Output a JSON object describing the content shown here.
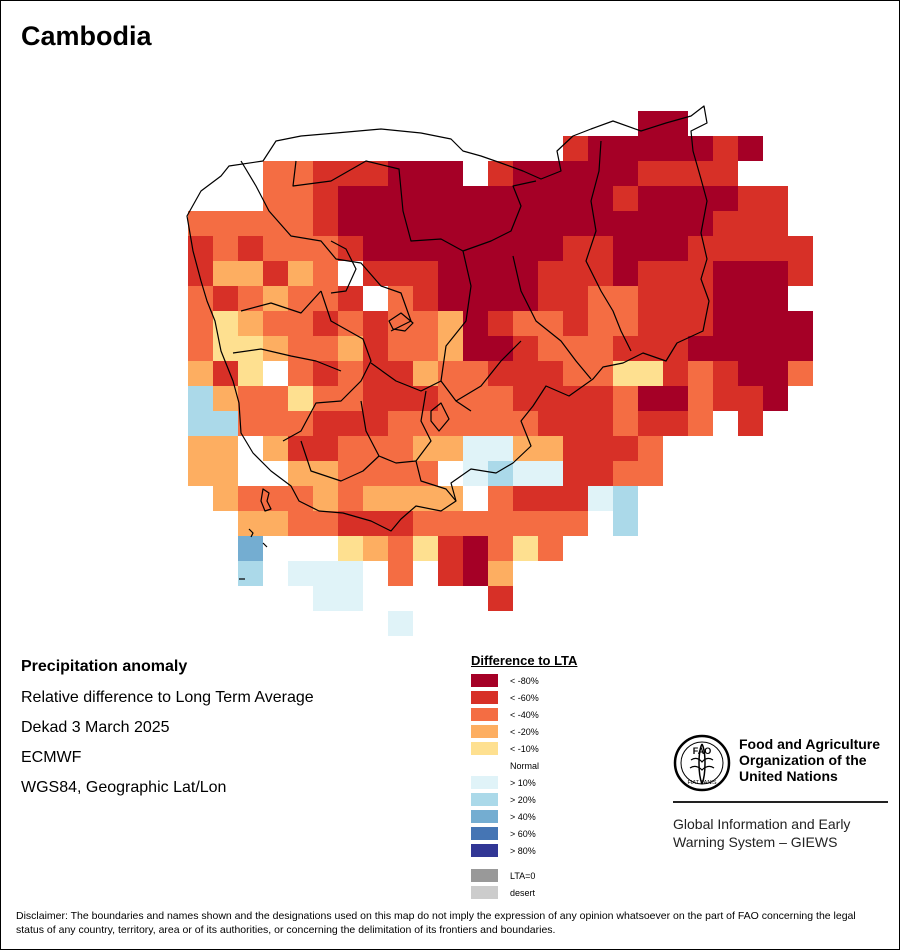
{
  "title": "Cambodia",
  "info": {
    "heading": "Precipitation anomaly",
    "line1": "Relative difference to Long Term Average",
    "line2": "Dekad 3 March 2025",
    "line3": "ECMWF",
    "line4": "WGS84, Geographic Lat/Lon"
  },
  "legend": {
    "title": "Difference to LTA",
    "classes": [
      {
        "key": "d80",
        "label": "< -80%",
        "color": "#A50026"
      },
      {
        "key": "d60",
        "label": "< -60%",
        "color": "#D73027"
      },
      {
        "key": "d40",
        "label": "< -40%",
        "color": "#F46D43"
      },
      {
        "key": "d20",
        "label": "< -20%",
        "color": "#FDAE61"
      },
      {
        "key": "d10",
        "label": "< -10%",
        "color": "#FEE090"
      },
      {
        "key": "n",
        "label": "Normal",
        "color": "#FFFFFF"
      },
      {
        "key": "w10",
        "label": "> 10%",
        "color": "#E0F3F8"
      },
      {
        "key": "w20",
        "label": "> 20%",
        "color": "#ABD9E9"
      },
      {
        "key": "w40",
        "label": "> 40%",
        "color": "#74ADD1"
      },
      {
        "key": "w60",
        "label": "> 60%",
        "color": "#4575B4"
      },
      {
        "key": "w80",
        "label": "> 80%",
        "color": "#313695"
      }
    ],
    "extra": [
      {
        "key": "lta0",
        "label": "LTA=0",
        "color": "#999999"
      },
      {
        "key": "desert",
        "label": "desert",
        "color": "#CCCCCC"
      }
    ]
  },
  "branding": {
    "logo_letters": "FAO",
    "logo_motto": "FIAT PANIS",
    "org_line1": "Food and Agriculture",
    "org_line2": "Organization of the",
    "org_line3": "United Nations",
    "giews_line1": "Global Information and Early",
    "giews_line2": "Warning System – GIEWS"
  },
  "disclaimer": "Disclaimer: The boundaries and names shown and the designations used on this map do not imply the expression of any opinion whatsoever on the part of FAO concerning the legal status of any country, territory, area or of its authorities, or concerning the delimitation of its frontiers and boundaries.",
  "grid_legend_key": "A=< -80%, B=< -60%, C=< -40%, D=< -20%, E=< -10%, N=Normal, F=> 10%, G=> 20%, H=> 40%, .=no data",
  "anomaly_grid": [
    "..................AA.....",
    "...............BAAAAABA..",
    "...CCBBBAAA.BAAAAABBBB...",
    "...CCBAAAAAAAAAAABAAAABB.",
    "CCCCCBAAAAAAAAAAAAAAABBB.",
    "BCBCCCBAAAAAAAABBAAABBBBB",
    "BDDBDCNBBBAAAABBBABBBAAAB",
    "CBCDCCBNCBAAAABBCCBBBAAAN",
    "CEDCCBCBCCDABCCBCCBBBAAAA",
    "CEEDCCDBCCDAABCCCBBBAAAAA",
    "DBENCBCBBDCCBBBCCEEBCBAAC",
    "GDCCECCBBBCCCBBBBCAACBBA.",
    "GGCCCBBBCCCCCCBBBCBBC.B..",
    "DDNDBBCCCDDFFDDBBBC......",
    "DDNNDDCCCCNFGFFBBCC......",
    "NDCCCDCDDDDNCBBBFG.......",
    "..DDCCBBBCCCCCCCNG.......",
    "..HNNNEDCEBACEC..........",
    "..GNFFFNCNBAD............",
    "....NFF.....B............",
    "........F................"
  ]
}
